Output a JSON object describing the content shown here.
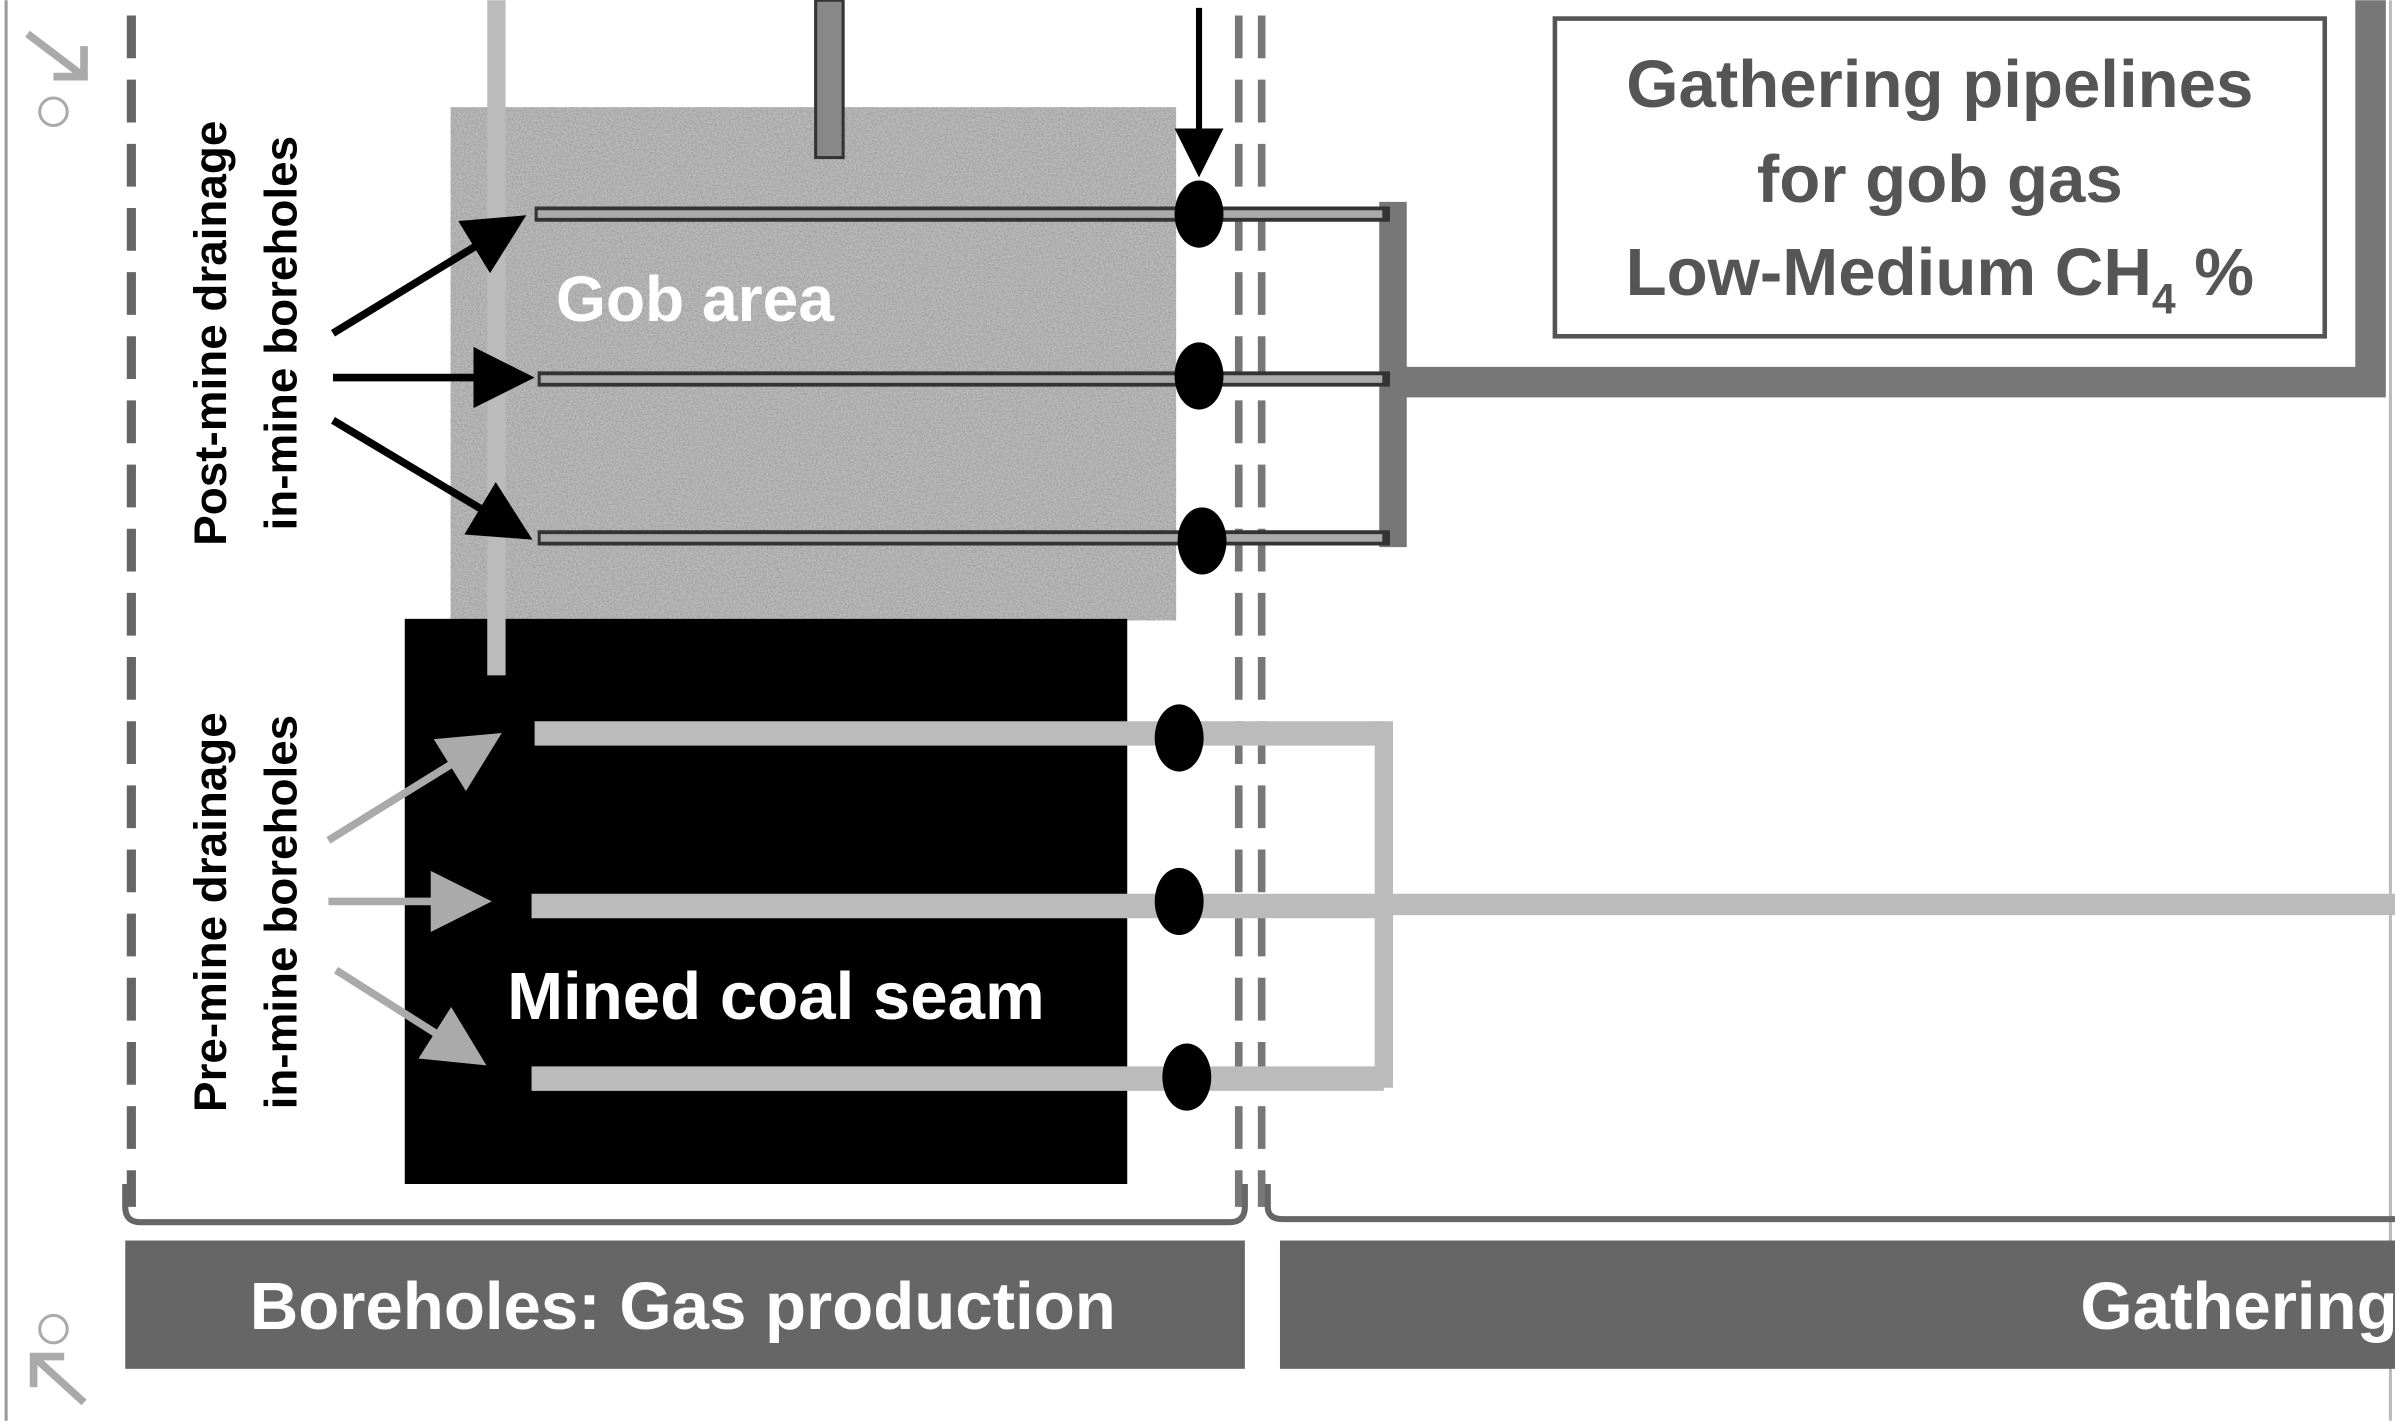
{
  "left_labels": {
    "post_mine": [
      "Post-mine drainage",
      "in-mine boreholes"
    ],
    "pre_mine": [
      "Pre-mine drainage",
      "in-mine boreholes"
    ]
  },
  "areas": {
    "gob": "Gob area",
    "coal": "Mined coal seam"
  },
  "pipeline_box": {
    "lines": [
      "Gathering pipelines",
      "for gob gas"
    ],
    "ch4_line": {
      "text": "Low-Medium CH",
      "subscript": "4",
      "suffix": " %"
    }
  },
  "footer": {
    "left": "Boreholes: Gas production",
    "right": "Gathering"
  }
}
